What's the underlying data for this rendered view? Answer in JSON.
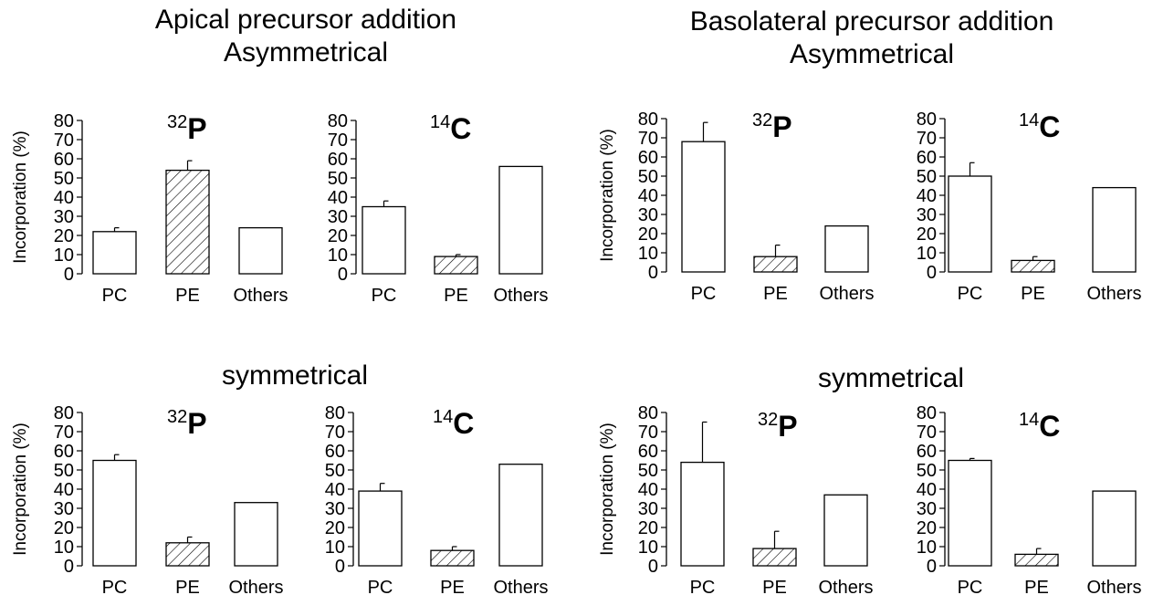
{
  "headings": {
    "left": {
      "line1": "Apical precursor addition",
      "line2": "Asymmetrical",
      "bottom": "symmetrical"
    },
    "right": {
      "line1": "Basolateral precursor addition",
      "line2": "Asymmetrical",
      "bottom": "symmetrical"
    }
  },
  "colors": {
    "bar_fill": "#ffffff",
    "stroke": "#000000",
    "hatch": "#000000"
  },
  "chart_data": [
    {
      "type": "bar",
      "panel": "apical-asym-32P",
      "isotope": {
        "mass": "32",
        "symbol": "P"
      },
      "ylabel": "Incorporation (%)",
      "ylim": [
        0,
        80
      ],
      "yticks": [
        0,
        10,
        20,
        30,
        40,
        50,
        60,
        70,
        80
      ],
      "categories": [
        "PC",
        "PE",
        "Others"
      ],
      "values": [
        22,
        54,
        24
      ],
      "error": [
        2,
        5,
        null
      ],
      "hatched": [
        false,
        true,
        false
      ]
    },
    {
      "type": "bar",
      "panel": "apical-asym-14C",
      "isotope": {
        "mass": "14",
        "symbol": "C"
      },
      "ylabel": "",
      "ylim": [
        0,
        80
      ],
      "yticks": [
        0,
        10,
        20,
        30,
        40,
        50,
        60,
        70,
        80
      ],
      "categories": [
        "PC",
        "PE",
        "Others"
      ],
      "values": [
        35,
        9,
        56
      ],
      "error": [
        3,
        1,
        null
      ],
      "hatched": [
        false,
        true,
        false
      ]
    },
    {
      "type": "bar",
      "panel": "basolateral-asym-32P",
      "isotope": {
        "mass": "32",
        "symbol": "P"
      },
      "ylabel": "Incorporation (%)",
      "ylim": [
        0,
        80
      ],
      "yticks": [
        0,
        10,
        20,
        30,
        40,
        50,
        60,
        70,
        80
      ],
      "categories": [
        "PC",
        "PE",
        "Others"
      ],
      "values": [
        68,
        8,
        24
      ],
      "error": [
        10,
        6,
        null
      ],
      "hatched": [
        false,
        true,
        false
      ]
    },
    {
      "type": "bar",
      "panel": "basolateral-asym-14C",
      "isotope": {
        "mass": "14",
        "symbol": "C"
      },
      "ylabel": "",
      "ylim": [
        0,
        80
      ],
      "yticks": [
        0,
        10,
        20,
        30,
        40,
        50,
        60,
        70,
        80
      ],
      "categories": [
        "PC",
        "PE",
        "Others"
      ],
      "values": [
        50,
        6,
        44
      ],
      "error": [
        7,
        2,
        null
      ],
      "hatched": [
        false,
        true,
        false
      ]
    },
    {
      "type": "bar",
      "panel": "apical-sym-32P",
      "isotope": {
        "mass": "32",
        "symbol": "P"
      },
      "ylabel": "Incorporation (%)",
      "ylim": [
        0,
        80
      ],
      "yticks": [
        0,
        10,
        20,
        30,
        40,
        50,
        60,
        70,
        80
      ],
      "categories": [
        "PC",
        "PE",
        "Others"
      ],
      "values": [
        55,
        12,
        33
      ],
      "error": [
        3,
        3,
        null
      ],
      "hatched": [
        false,
        true,
        false
      ]
    },
    {
      "type": "bar",
      "panel": "apical-sym-14C",
      "isotope": {
        "mass": "14",
        "symbol": "C"
      },
      "ylabel": "",
      "ylim": [
        0,
        80
      ],
      "yticks": [
        0,
        10,
        20,
        30,
        40,
        50,
        60,
        70,
        80
      ],
      "categories": [
        "PC",
        "PE",
        "Others"
      ],
      "values": [
        39,
        8,
        53
      ],
      "error": [
        4,
        2,
        null
      ],
      "hatched": [
        false,
        true,
        false
      ]
    },
    {
      "type": "bar",
      "panel": "basolateral-sym-32P",
      "isotope": {
        "mass": "32",
        "symbol": "P"
      },
      "ylabel": "Incorporation (%)",
      "ylim": [
        0,
        80
      ],
      "yticks": [
        0,
        10,
        20,
        30,
        40,
        50,
        60,
        70,
        80
      ],
      "categories": [
        "PC",
        "PE",
        "Others"
      ],
      "values": [
        54,
        9,
        37
      ],
      "error": [
        21,
        9,
        null
      ],
      "hatched": [
        false,
        true,
        false
      ]
    },
    {
      "type": "bar",
      "panel": "basolateral-sym-14C",
      "isotope": {
        "mass": "14",
        "symbol": "C"
      },
      "ylabel": "",
      "ylim": [
        0,
        80
      ],
      "yticks": [
        0,
        10,
        20,
        30,
        40,
        50,
        60,
        70,
        80
      ],
      "categories": [
        "PC",
        "PE",
        "Others"
      ],
      "values": [
        55,
        6,
        39
      ],
      "error": [
        1,
        3,
        null
      ],
      "hatched": [
        false,
        true,
        false
      ]
    }
  ]
}
